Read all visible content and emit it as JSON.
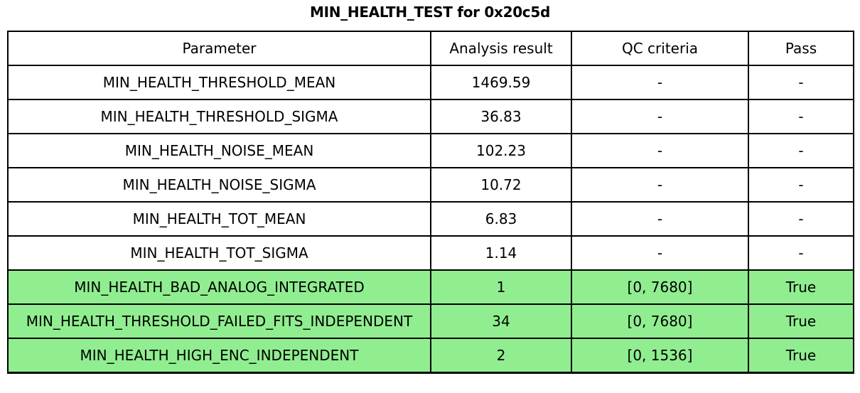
{
  "title": "MIN_HEALTH_TEST for 0x20c5d",
  "colors": {
    "background": "#ffffff",
    "border": "#000000",
    "highlight_green": "#90EE90",
    "text": "#000000"
  },
  "chart_data": {
    "type": "table",
    "title": "MIN_HEALTH_TEST for 0x20c5d",
    "columns": [
      "Parameter",
      "Analysis result",
      "QC criteria",
      "Pass"
    ],
    "rows": [
      {
        "parameter": "MIN_HEALTH_THRESHOLD_MEAN",
        "analysis_result": "1469.59",
        "qc_criteria": "-",
        "pass": "-",
        "highlight": false
      },
      {
        "parameter": "MIN_HEALTH_THRESHOLD_SIGMA",
        "analysis_result": "36.83",
        "qc_criteria": "-",
        "pass": "-",
        "highlight": false
      },
      {
        "parameter": "MIN_HEALTH_NOISE_MEAN",
        "analysis_result": "102.23",
        "qc_criteria": "-",
        "pass": "-",
        "highlight": false
      },
      {
        "parameter": "MIN_HEALTH_NOISE_SIGMA",
        "analysis_result": "10.72",
        "qc_criteria": "-",
        "pass": "-",
        "highlight": false
      },
      {
        "parameter": "MIN_HEALTH_TOT_MEAN",
        "analysis_result": "6.83",
        "qc_criteria": "-",
        "pass": "-",
        "highlight": false
      },
      {
        "parameter": "MIN_HEALTH_TOT_SIGMA",
        "analysis_result": "1.14",
        "qc_criteria": "-",
        "pass": "-",
        "highlight": false
      },
      {
        "parameter": "MIN_HEALTH_BAD_ANALOG_INTEGRATED",
        "analysis_result": "1",
        "qc_criteria": "[0, 7680]",
        "pass": "True",
        "highlight": true
      },
      {
        "parameter": "MIN_HEALTH_THRESHOLD_FAILED_FITS_INDEPENDENT",
        "analysis_result": "34",
        "qc_criteria": "[0, 7680]",
        "pass": "True",
        "highlight": true
      },
      {
        "parameter": "MIN_HEALTH_HIGH_ENC_INDEPENDENT",
        "analysis_result": "2",
        "qc_criteria": "[0, 1536]",
        "pass": "True",
        "highlight": true
      }
    ],
    "layout": {
      "legend": "none",
      "grid": "full-borders",
      "header_row": true
    }
  }
}
